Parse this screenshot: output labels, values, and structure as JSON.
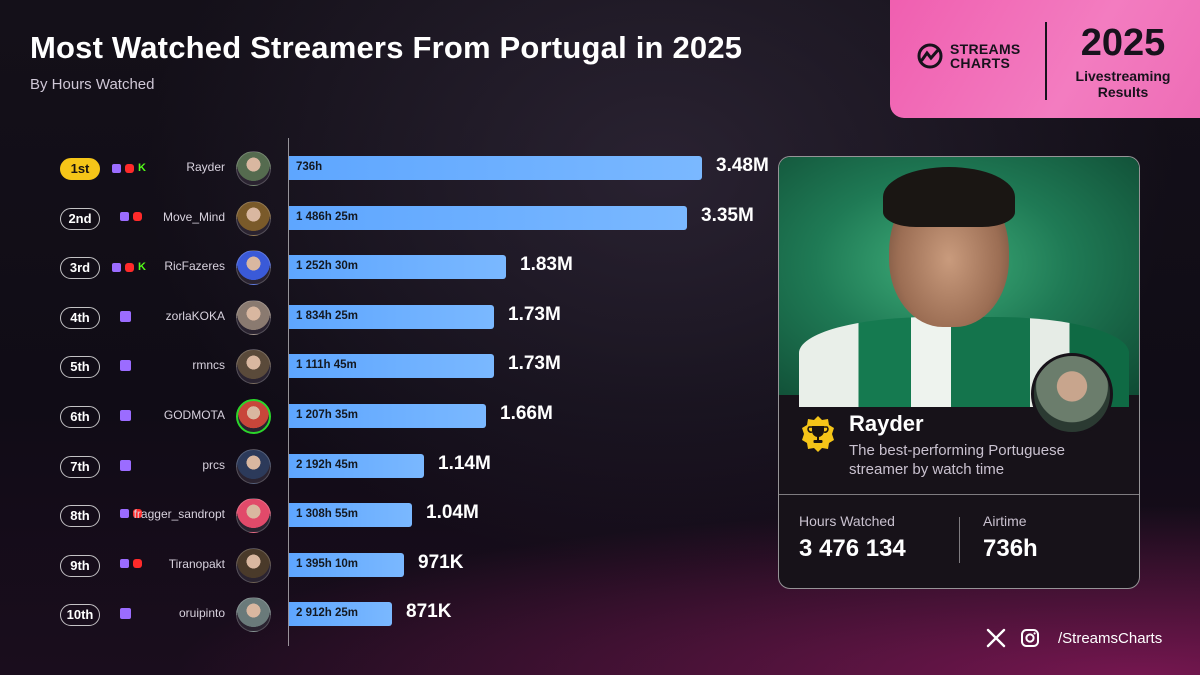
{
  "header": {
    "title": "Most Watched Streamers From Portugal in 2025",
    "subtitle": "By Hours Watched"
  },
  "badge": {
    "brand_line1": "STREAMS",
    "brand_line2": "CHARTS",
    "year": "2025",
    "line1": "Livestreaming",
    "line2": "Results"
  },
  "chart_data": {
    "type": "bar",
    "orientation": "horizontal",
    "title": "Most Watched Streamers From Portugal in 2025",
    "subtitle": "By Hours Watched",
    "categories": [
      "Rayder",
      "Move_Mind",
      "RicFazeres",
      "zorlaKOKA",
      "rmncs",
      "GODMOTA",
      "prcs",
      "fragger_sandropt",
      "Tiranopakt",
      "oruipinto"
    ],
    "ranks": [
      "1st",
      "2nd",
      "3rd",
      "4th",
      "5th",
      "6th",
      "7th",
      "8th",
      "9th",
      "10th"
    ],
    "values": [
      3480000,
      3350000,
      1830000,
      1730000,
      1730000,
      1660000,
      1140000,
      1040000,
      971000,
      871000
    ],
    "value_labels": [
      "3.48M",
      "3.35M",
      "1.83M",
      "1.73M",
      "1.73M",
      "1.66M",
      "1.14M",
      "1.04M",
      "971K",
      "871K"
    ],
    "airtime_labels": [
      "736h",
      "1 486h 25m",
      "1 252h 30m",
      "1 834h 25m",
      "1 111h 45m",
      "1 207h 35m",
      "2 192h 45m",
      "1 308h 55m",
      "1 395h 10m",
      "2 912h 25m"
    ],
    "platforms": [
      [
        "twitch",
        "youtube",
        "kick"
      ],
      [
        "twitch",
        "youtube"
      ],
      [
        "twitch",
        "youtube",
        "kick"
      ],
      [
        "twitch"
      ],
      [
        "twitch"
      ],
      [
        "twitch"
      ],
      [
        "twitch"
      ],
      [
        "twitch",
        "youtube"
      ],
      [
        "twitch",
        "youtube"
      ],
      [
        "twitch"
      ]
    ],
    "xlim": [
      0,
      3480000
    ],
    "grid": false,
    "bar_color": "#6aaeff",
    "highlight_rank_color": "#f5c518"
  },
  "highlight": {
    "name": "Rayder",
    "description": "The best-performing Portuguese streamer by watch time",
    "stats": [
      {
        "label": "Hours Watched",
        "value": "3 476 134"
      },
      {
        "label": "Airtime",
        "value": "736h"
      }
    ]
  },
  "footer": {
    "icons": [
      "x-icon",
      "instagram-icon"
    ],
    "handle": "/StreamsCharts"
  }
}
